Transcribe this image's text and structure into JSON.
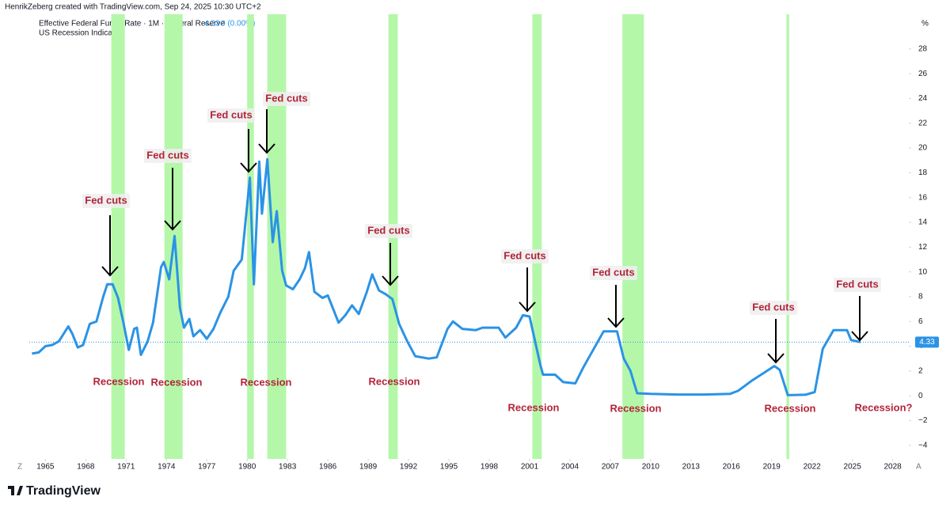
{
  "chart_data": {
    "type": "line",
    "header": "HenrikZeberg created with TradingView.com, Sep 24, 2025 10:30 UTC+2",
    "y_unit": "%",
    "corner_labels": [
      "Z",
      "A"
    ],
    "brand": "TradingView",
    "last_value": 4.33,
    "change": "0 (0.00%)",
    "x": [
      1964.0,
      1964.5,
      1965.0,
      1965.5,
      1966.0,
      1966.7,
      1967.0,
      1967.4,
      1967.8,
      1968.3,
      1968.8,
      1969.3,
      1969.6,
      1970.0,
      1970.4,
      1970.8,
      1971.2,
      1971.6,
      1971.8,
      1972.1,
      1972.6,
      1973.0,
      1973.6,
      1973.8,
      1974.2,
      1974.6,
      1975.0,
      1975.3,
      1975.7,
      1976.0,
      1976.5,
      1977.0,
      1977.5,
      1978.0,
      1978.6,
      1979.0,
      1979.6,
      1980.2,
      1980.5,
      1980.9,
      1981.1,
      1981.5,
      1981.9,
      1982.2,
      1982.6,
      1982.9,
      1983.4,
      1983.9,
      1984.3,
      1984.6,
      1985.0,
      1985.6,
      1986.0,
      1986.8,
      1987.3,
      1987.8,
      1988.3,
      1988.9,
      1989.3,
      1989.8,
      1990.3,
      1990.8,
      1991.3,
      1991.9,
      1992.5,
      1993.5,
      1994.1,
      1994.9,
      1995.3,
      1996.0,
      1997.0,
      1997.5,
      1998.7,
      1999.2,
      2000.0,
      2000.5,
      2001.0,
      2001.8,
      2002.0,
      2002.9,
      2003.5,
      2004.4,
      2005.0,
      2006.5,
      2007.5,
      2008.0,
      2008.5,
      2009.0,
      2010.0,
      2012.0,
      2014.0,
      2015.9,
      2016.5,
      2017.5,
      2018.5,
      2019.2,
      2019.6,
      2020.2,
      2021.5,
      2022.2,
      2022.8,
      2023.6,
      2024.6,
      2024.9,
      2025.6
    ],
    "series": [
      {
        "name": "Effective Federal Funds Rate · 1M · Federal Reserve",
        "color": "#2a93e6",
        "values": [
          3.4,
          3.5,
          4.0,
          4.1,
          4.4,
          5.6,
          5.0,
          3.9,
          4.1,
          5.8,
          6.0,
          8.0,
          9.0,
          9.0,
          7.9,
          5.9,
          3.7,
          5.4,
          5.5,
          3.3,
          4.4,
          5.9,
          10.4,
          10.8,
          9.4,
          12.9,
          7.1,
          5.5,
          6.2,
          4.8,
          5.3,
          4.6,
          5.4,
          6.7,
          8.0,
          10.1,
          11.0,
          17.6,
          9.0,
          18.9,
          14.7,
          19.1,
          12.4,
          14.9,
          10.1,
          8.9,
          8.6,
          9.4,
          10.3,
          11.6,
          8.4,
          7.9,
          8.1,
          5.9,
          6.5,
          7.3,
          6.6,
          8.4,
          9.8,
          8.5,
          8.2,
          7.8,
          5.8,
          4.4,
          3.2,
          3.0,
          3.1,
          5.4,
          6.0,
          5.4,
          5.3,
          5.5,
          5.5,
          4.7,
          5.5,
          6.5,
          6.4,
          2.5,
          1.7,
          1.7,
          1.1,
          1.0,
          2.3,
          5.2,
          5.2,
          3.0,
          2.0,
          0.2,
          0.15,
          0.1,
          0.1,
          0.15,
          0.4,
          1.2,
          1.9,
          2.4,
          2.1,
          0.05,
          0.08,
          0.3,
          3.8,
          5.3,
          5.3,
          4.5,
          4.33
        ]
      }
    ],
    "recessions": {
      "name": "US Recession Indicator",
      "color": "#b4f7a9",
      "periods": [
        [
          1969.9,
          1970.9
        ],
        [
          1973.85,
          1975.2
        ],
        [
          1980.0,
          1980.5
        ],
        [
          1981.5,
          1982.9
        ],
        [
          1990.5,
          1991.2
        ],
        [
          2001.2,
          2001.9
        ],
        [
          2007.9,
          2009.5
        ],
        [
          2020.1,
          2020.3
        ]
      ]
    },
    "annotations": [
      "Fed cuts",
      "Fed cuts",
      "Fed cuts",
      "Fed cuts",
      "Fed cuts",
      "Fed cuts",
      "Fed cuts",
      "Fed cuts",
      "Fed cuts"
    ],
    "recession_labels": [
      "Recession",
      "Recession",
      "Recession",
      "Recession",
      "Recession",
      "Recession",
      "Recession",
      "Recession?"
    ],
    "xlim": [
      1963.8,
      2029.2
    ],
    "xticks": [
      1965,
      1968,
      1971,
      1974,
      1977,
      1980,
      1983,
      1986,
      1989,
      1992,
      1995,
      1998,
      2001,
      2004,
      2007,
      2010,
      2013,
      2016,
      2019,
      2022,
      2025,
      2028
    ],
    "ylim": [
      -5.1,
      30.8
    ],
    "yticks": [
      {
        "value": -4,
        "label": "−4"
      },
      {
        "value": -2,
        "label": "−2"
      },
      0,
      2,
      4,
      6,
      8,
      10,
      12,
      14,
      16,
      18,
      20,
      22,
      24,
      26,
      28
    ],
    "grid": false
  }
}
